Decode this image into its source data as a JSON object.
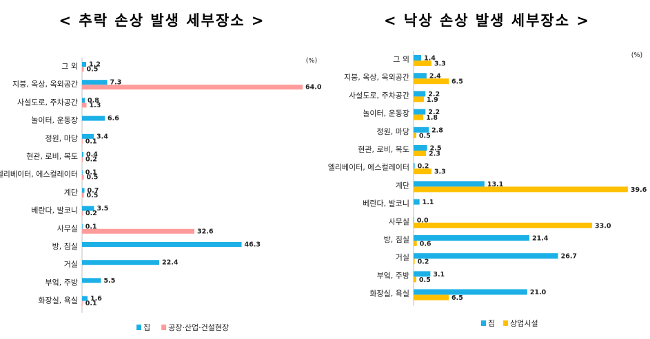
{
  "chart_data": [
    {
      "type": "bar",
      "orientation": "horizontal",
      "title": "< 추락 손상 발생 세부장소 >",
      "unit": "(%)",
      "categories": [
        "그 외",
        "지붕, 옥상, 옥외공간",
        "사설도로, 주차공간",
        "놀이터, 운동장",
        "정원, 마당",
        "현관, 로비, 복도",
        "엘리베이터, 에스컬레이터",
        "계단",
        "베란다, 발코니",
        "사무실",
        "방, 침실",
        "거실",
        "부엌, 주방",
        "화장실, 욕실"
      ],
      "series": [
        {
          "name": "집",
          "color": "#1cb0e6",
          "values": [
            1.2,
            7.3,
            0.8,
            6.6,
            3.4,
            0.4,
            0.1,
            0.7,
            3.5,
            0.1,
            46.3,
            22.4,
            5.5,
            1.6
          ]
        },
        {
          "name": "공장·산업·건설현장",
          "color": "#ff9b9b",
          "values": [
            0.5,
            64.0,
            1.3,
            null,
            0.1,
            0.2,
            0.5,
            0.5,
            0.2,
            32.6,
            null,
            null,
            null,
            0.1
          ]
        }
      ],
      "xlim": [
        0,
        65
      ]
    },
    {
      "type": "bar",
      "orientation": "horizontal",
      "title": "< 낙상 손상 발생 세부장소 >",
      "unit": "(%)",
      "categories": [
        "그 외",
        "지붕, 옥상, 옥외공간",
        "사설도로, 주차공간",
        "놀이터, 운동장",
        "정원, 마당",
        "현관, 로비, 복도",
        "엘리베이터, 에스컬레이터",
        "계단",
        "베란다, 발코니",
        "사무실",
        "방, 침실",
        "거실",
        "부엌, 주방",
        "화장실, 욕실"
      ],
      "series": [
        {
          "name": "집",
          "color": "#1cb0e6",
          "values": [
            1.4,
            2.4,
            2.2,
            2.2,
            2.8,
            2.5,
            0.2,
            13.1,
            1.1,
            0.0,
            21.4,
            26.7,
            3.1,
            21.0
          ]
        },
        {
          "name": "상업시설",
          "color": "#ffc000",
          "values": [
            3.3,
            6.5,
            1.9,
            1.8,
            0.5,
            2.3,
            3.3,
            39.6,
            null,
            33.0,
            0.6,
            0.2,
            0.5,
            6.5
          ]
        }
      ],
      "xlim": [
        0,
        40
      ]
    }
  ]
}
